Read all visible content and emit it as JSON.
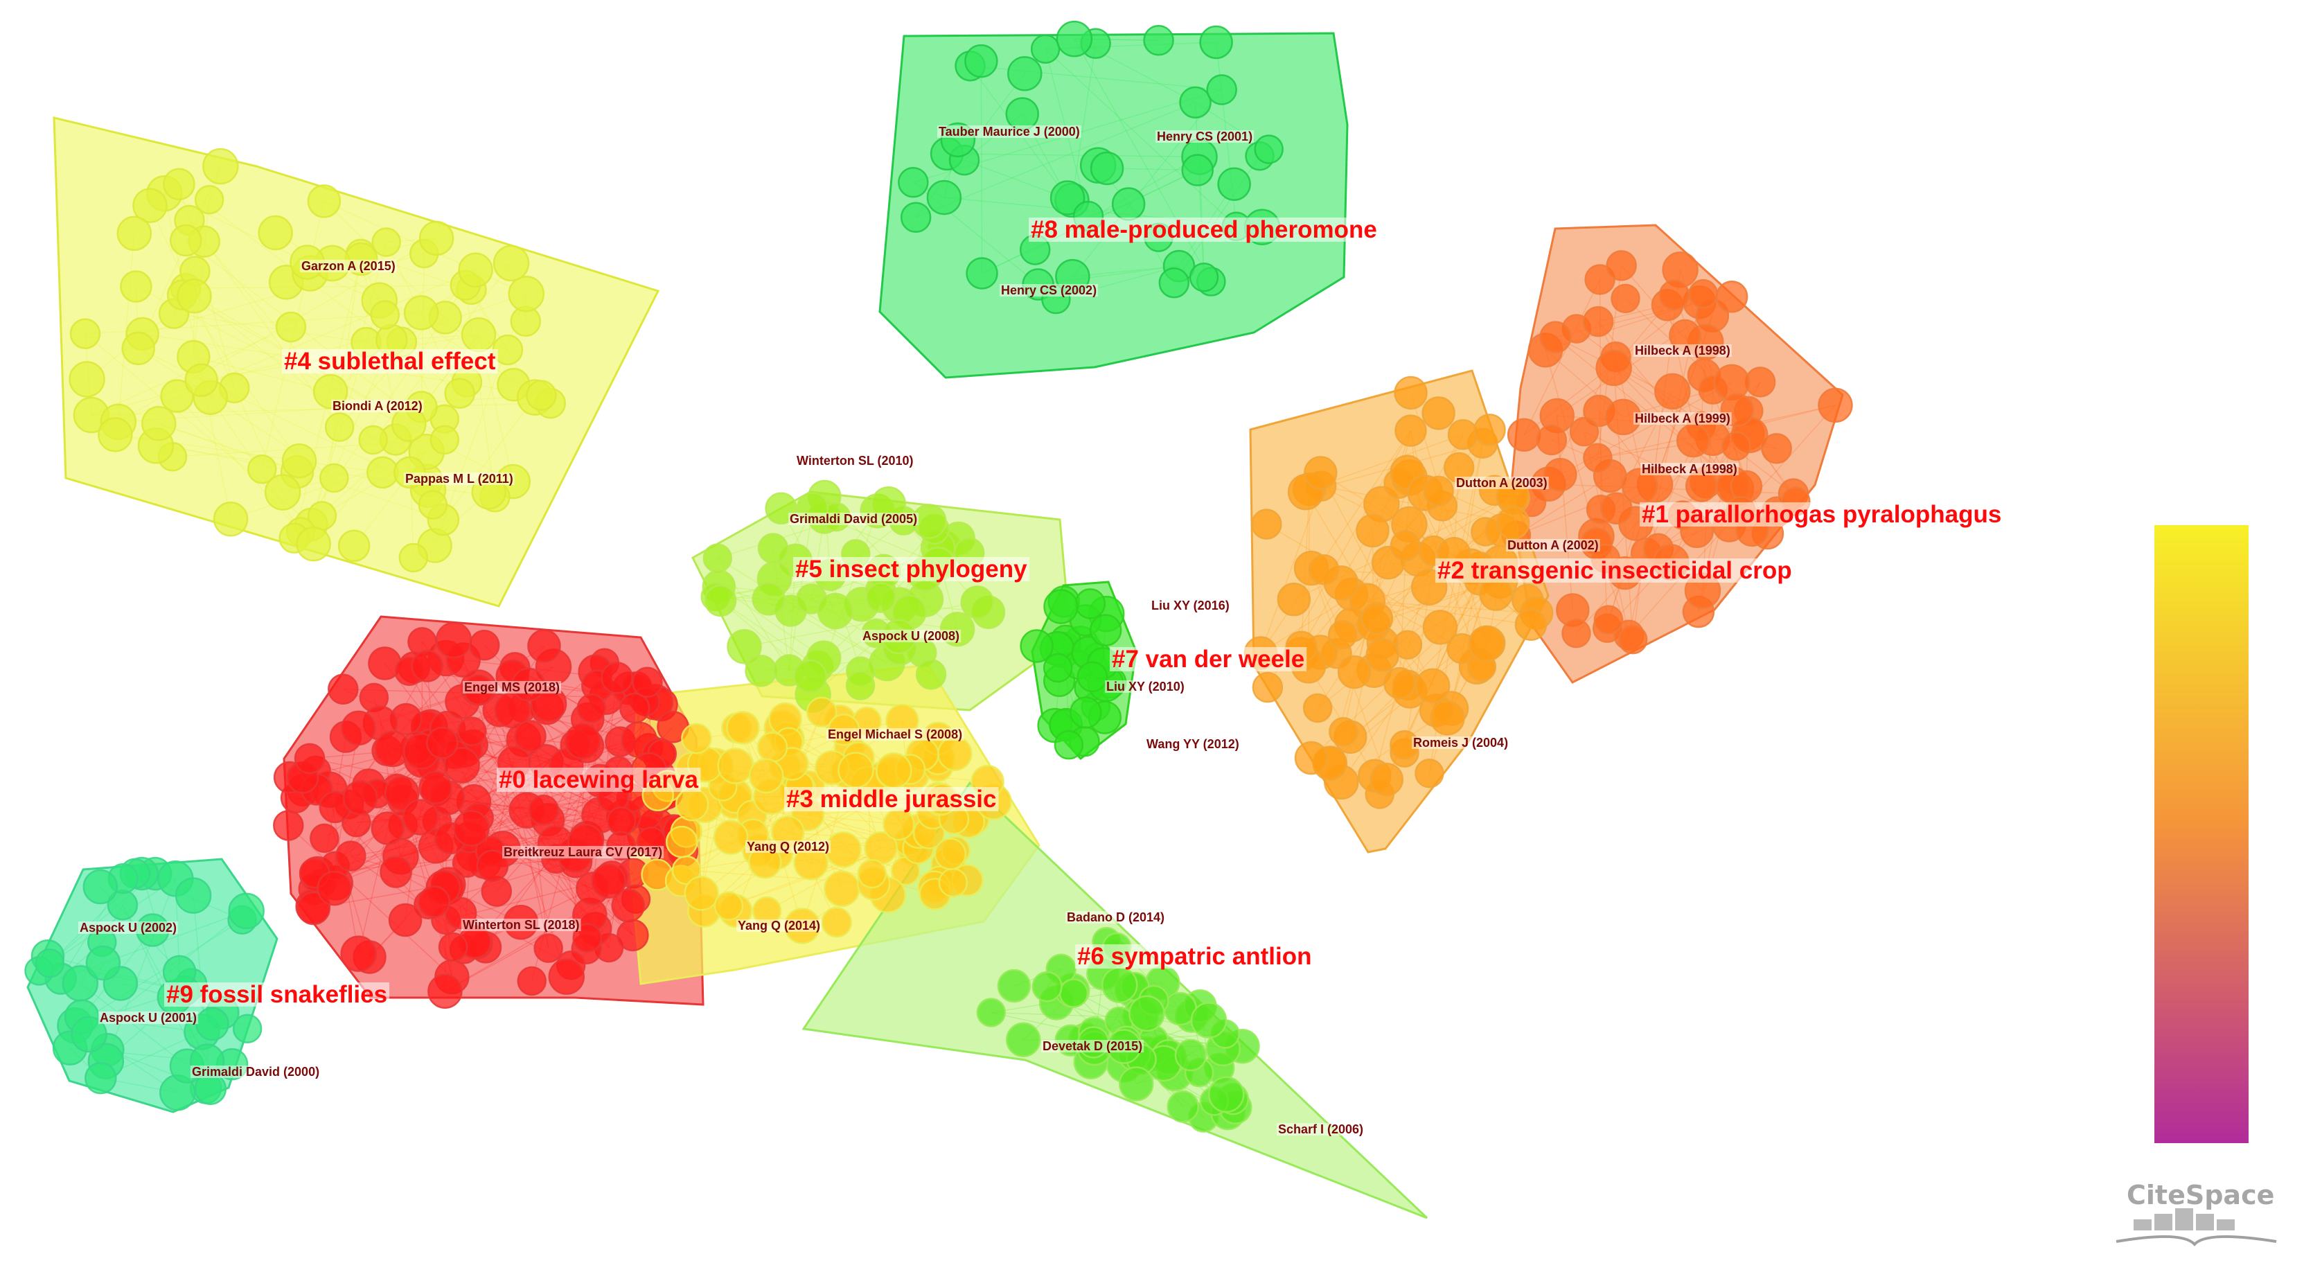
{
  "clusters": [
    {
      "id": "c8",
      "label": "#8 male-produced pheromone",
      "color": "#33e65c",
      "fill": "#59ec7d",
      "stroke": "#22c94a"
    },
    {
      "id": "c4",
      "label": "#4 sublethal effect",
      "color": "#e2f23c",
      "fill": "#f3f87a",
      "stroke": "#dde83a"
    },
    {
      "id": "c1",
      "label": "#1 parallorhogas pyralophagus",
      "color": "#ff6a1c",
      "fill": "#f7a06d",
      "stroke": "#f07b3a"
    },
    {
      "id": "c2",
      "label": "#2 transgenic insecticidal crop",
      "color": "#ff9c14",
      "fill": "#fbbf5e",
      "stroke": "#f0a538"
    },
    {
      "id": "c5",
      "label": "#5 insect phylogeny",
      "color": "#a3ee1e",
      "fill": "#d2f58c",
      "stroke": "#b6ea52"
    },
    {
      "id": "c7",
      "label": "#7 van der weele",
      "color": "#2ee41e",
      "fill": "#5ee94e",
      "stroke": "#30d21f"
    },
    {
      "id": "c0",
      "label": "#0 lacewing larva",
      "color": "#ff1a1a",
      "fill": "#f56262",
      "stroke": "#e83636"
    },
    {
      "id": "c3",
      "label": "#3 middle jurassic",
      "color": "#ffcc1a",
      "fill": "#f7f35a",
      "stroke": "#eaec58"
    },
    {
      "id": "c6",
      "label": "#6 sympatric antlion",
      "color": "#56e81e",
      "fill": "#bff48e",
      "stroke": "#98ea5a"
    },
    {
      "id": "c9",
      "label": "#9 fossil snakeflies",
      "color": "#2ee87a",
      "fill": "#5cecab",
      "stroke": "#3ad68a"
    }
  ],
  "authors": [
    {
      "text": "Tauber Maurice J (2000)",
      "cluster": "c8"
    },
    {
      "text": "Henry CS (2001)",
      "cluster": "c8"
    },
    {
      "text": "Henry CS (2002)",
      "cluster": "c8"
    },
    {
      "text": "Garzon A (2015)",
      "cluster": "c4"
    },
    {
      "text": "Biondi A (2012)",
      "cluster": "c4"
    },
    {
      "text": "Pappas M L (2011)",
      "cluster": "c4"
    },
    {
      "text": "Hilbeck A (1998)",
      "cluster": "c1"
    },
    {
      "text": "Hilbeck A (1999)",
      "cluster": "c1"
    },
    {
      "text": "Hilbeck A (1998)",
      "cluster": "c1"
    },
    {
      "text": "Dutton A (2003)",
      "cluster": "c2"
    },
    {
      "text": "Dutton A (2002)",
      "cluster": "c2"
    },
    {
      "text": "Romeis J (2004)",
      "cluster": "c2"
    },
    {
      "text": "Winterton SL (2010)",
      "cluster": "c5"
    },
    {
      "text": "Grimaldi David (2005)",
      "cluster": "c5"
    },
    {
      "text": "Aspock U (2008)",
      "cluster": "c5"
    },
    {
      "text": "Liu XY (2016)",
      "cluster": "c7"
    },
    {
      "text": "Liu XY (2010)",
      "cluster": "c7"
    },
    {
      "text": "Wang YY (2012)",
      "cluster": "c7"
    },
    {
      "text": "Engel MS (2018)",
      "cluster": "c0"
    },
    {
      "text": "Breitkreuz Laura CV (2017)",
      "cluster": "c0"
    },
    {
      "text": "Winterton SL (2018)",
      "cluster": "c0"
    },
    {
      "text": "Engel Michael S (2008)",
      "cluster": "c3"
    },
    {
      "text": "Yang Q (2012)",
      "cluster": "c3"
    },
    {
      "text": "Yang Q (2014)",
      "cluster": "c3"
    },
    {
      "text": "Badano D (2014)",
      "cluster": "c6"
    },
    {
      "text": "Devetak D (2015)",
      "cluster": "c6"
    },
    {
      "text": "Scharf I (2006)",
      "cluster": "c6"
    },
    {
      "text": "Aspock U (2002)",
      "cluster": "c9"
    },
    {
      "text": "Aspock U (2001)",
      "cluster": "c9"
    },
    {
      "text": "Grimaldi David (2000)",
      "cluster": "c9"
    }
  ],
  "colorbar": {
    "top_color": "#f7f028",
    "mid_color": "#f5953a",
    "bottom_color": "#b12c9a"
  },
  "logo": {
    "text": "CiteSpace"
  }
}
